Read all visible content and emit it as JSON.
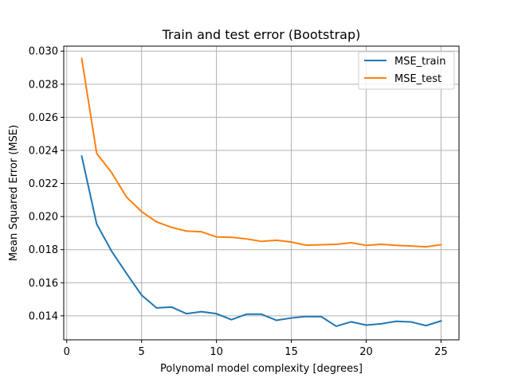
{
  "chart_data": {
    "type": "line",
    "title": "Train and test error (Bootstrap)",
    "xlabel": "Polynomal model complexity [degrees]",
    "ylabel": "Mean Squared Error (MSE)",
    "xlim": [
      -0.2,
      26.2
    ],
    "ylim": [
      0.01255,
      0.0303
    ],
    "xticks": [
      0,
      5,
      10,
      15,
      20,
      25
    ],
    "yticks": [
      0.014,
      0.016,
      0.018,
      0.02,
      0.022,
      0.024,
      0.026,
      0.028,
      0.03
    ],
    "ytick_labels": [
      "0.014",
      "0.016",
      "0.018",
      "0.020",
      "0.022",
      "0.024",
      "0.026",
      "0.028",
      "0.030"
    ],
    "grid": true,
    "legend_position": "top-right",
    "x": [
      1,
      2,
      3,
      4,
      5,
      6,
      7,
      8,
      9,
      10,
      11,
      12,
      13,
      14,
      15,
      16,
      17,
      18,
      19,
      20,
      21,
      22,
      23,
      24,
      25
    ],
    "series": [
      {
        "name": "MSE_train",
        "color": "#1f77b4",
        "values": [
          0.02365,
          0.01955,
          0.0179,
          0.01655,
          0.01525,
          0.01448,
          0.01453,
          0.01413,
          0.01425,
          0.01413,
          0.01377,
          0.0141,
          0.0141,
          0.01373,
          0.01387,
          0.01396,
          0.01395,
          0.01337,
          0.01364,
          0.01344,
          0.01352,
          0.01367,
          0.01363,
          0.01341,
          0.01369
        ]
      },
      {
        "name": "MSE_test",
        "color": "#ff7f0e",
        "values": [
          0.02955,
          0.02382,
          0.02265,
          0.02117,
          0.0203,
          0.01968,
          0.01935,
          0.01912,
          0.01908,
          0.01877,
          0.01875,
          0.01865,
          0.0185,
          0.01857,
          0.01846,
          0.01827,
          0.0183,
          0.01832,
          0.01842,
          0.01826,
          0.01832,
          0.01826,
          0.01822,
          0.01817,
          0.0183
        ]
      }
    ]
  }
}
